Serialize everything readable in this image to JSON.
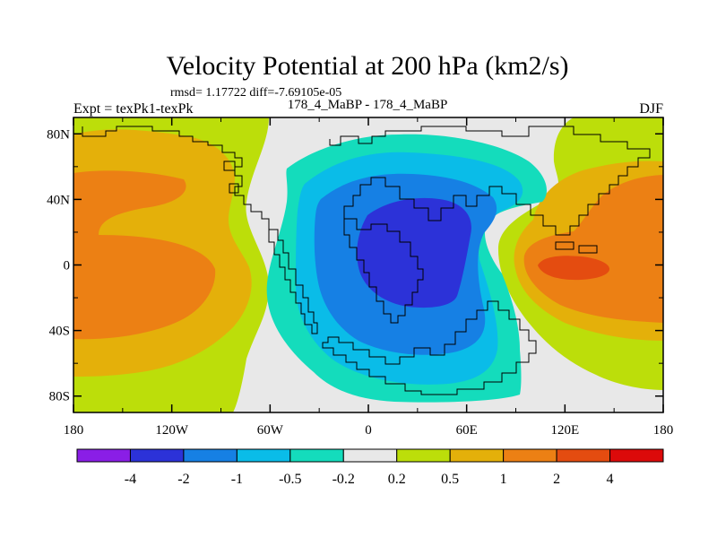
{
  "chart_data": {
    "type": "contour-map",
    "title": "Velocity Potential at 200 hPa (km2/s)",
    "stats": "rmsd= 1.17722 diff=-7.69105e-05",
    "left_label": "Expt = texPk1-texPk",
    "center_label": "178_4_MaBP - 178_4_MaBP",
    "right_label": "DJF",
    "x_ticks": [
      "180",
      "120W",
      "60W",
      "0",
      "60E",
      "120E",
      "180"
    ],
    "x_tick_values": [
      -180,
      -120,
      -60,
      0,
      60,
      120,
      180
    ],
    "y_ticks": [
      "80N",
      "40N",
      "0",
      "40S",
      "80S"
    ],
    "y_tick_values": [
      80,
      40,
      0,
      -40,
      -80
    ],
    "xlim": [
      -180,
      180
    ],
    "ylim": [
      -90,
      90
    ],
    "colorbar": {
      "colors": [
        "#8a1ee6",
        "#2c32d8",
        "#1680e4",
        "#0abce8",
        "#14dcbc",
        "#e8e8e8",
        "#bcde0a",
        "#e4b00a",
        "#ec8014",
        "#e44c10",
        "#dc0a0a"
      ],
      "labels": [
        "-4",
        "-2",
        "-1",
        "-0.5",
        "-0.2",
        "0.2",
        "0.5",
        "1",
        "2",
        "4"
      ],
      "levels": [
        -4,
        -2,
        -1,
        -0.5,
        -0.2,
        0.2,
        0.5,
        1,
        2,
        4
      ]
    },
    "fields": [
      {
        "name": "negative-center",
        "sign": -1,
        "center_lon": 40,
        "center_lat": 10,
        "peak": -3.0
      },
      {
        "name": "positive-center-west",
        "sign": 1,
        "center_lon": -170,
        "center_lat": 0,
        "peak": 1.6
      },
      {
        "name": "positive-center-east",
        "sign": 1,
        "center_lon": 130,
        "center_lat": 0,
        "peak": 2.2
      }
    ]
  }
}
